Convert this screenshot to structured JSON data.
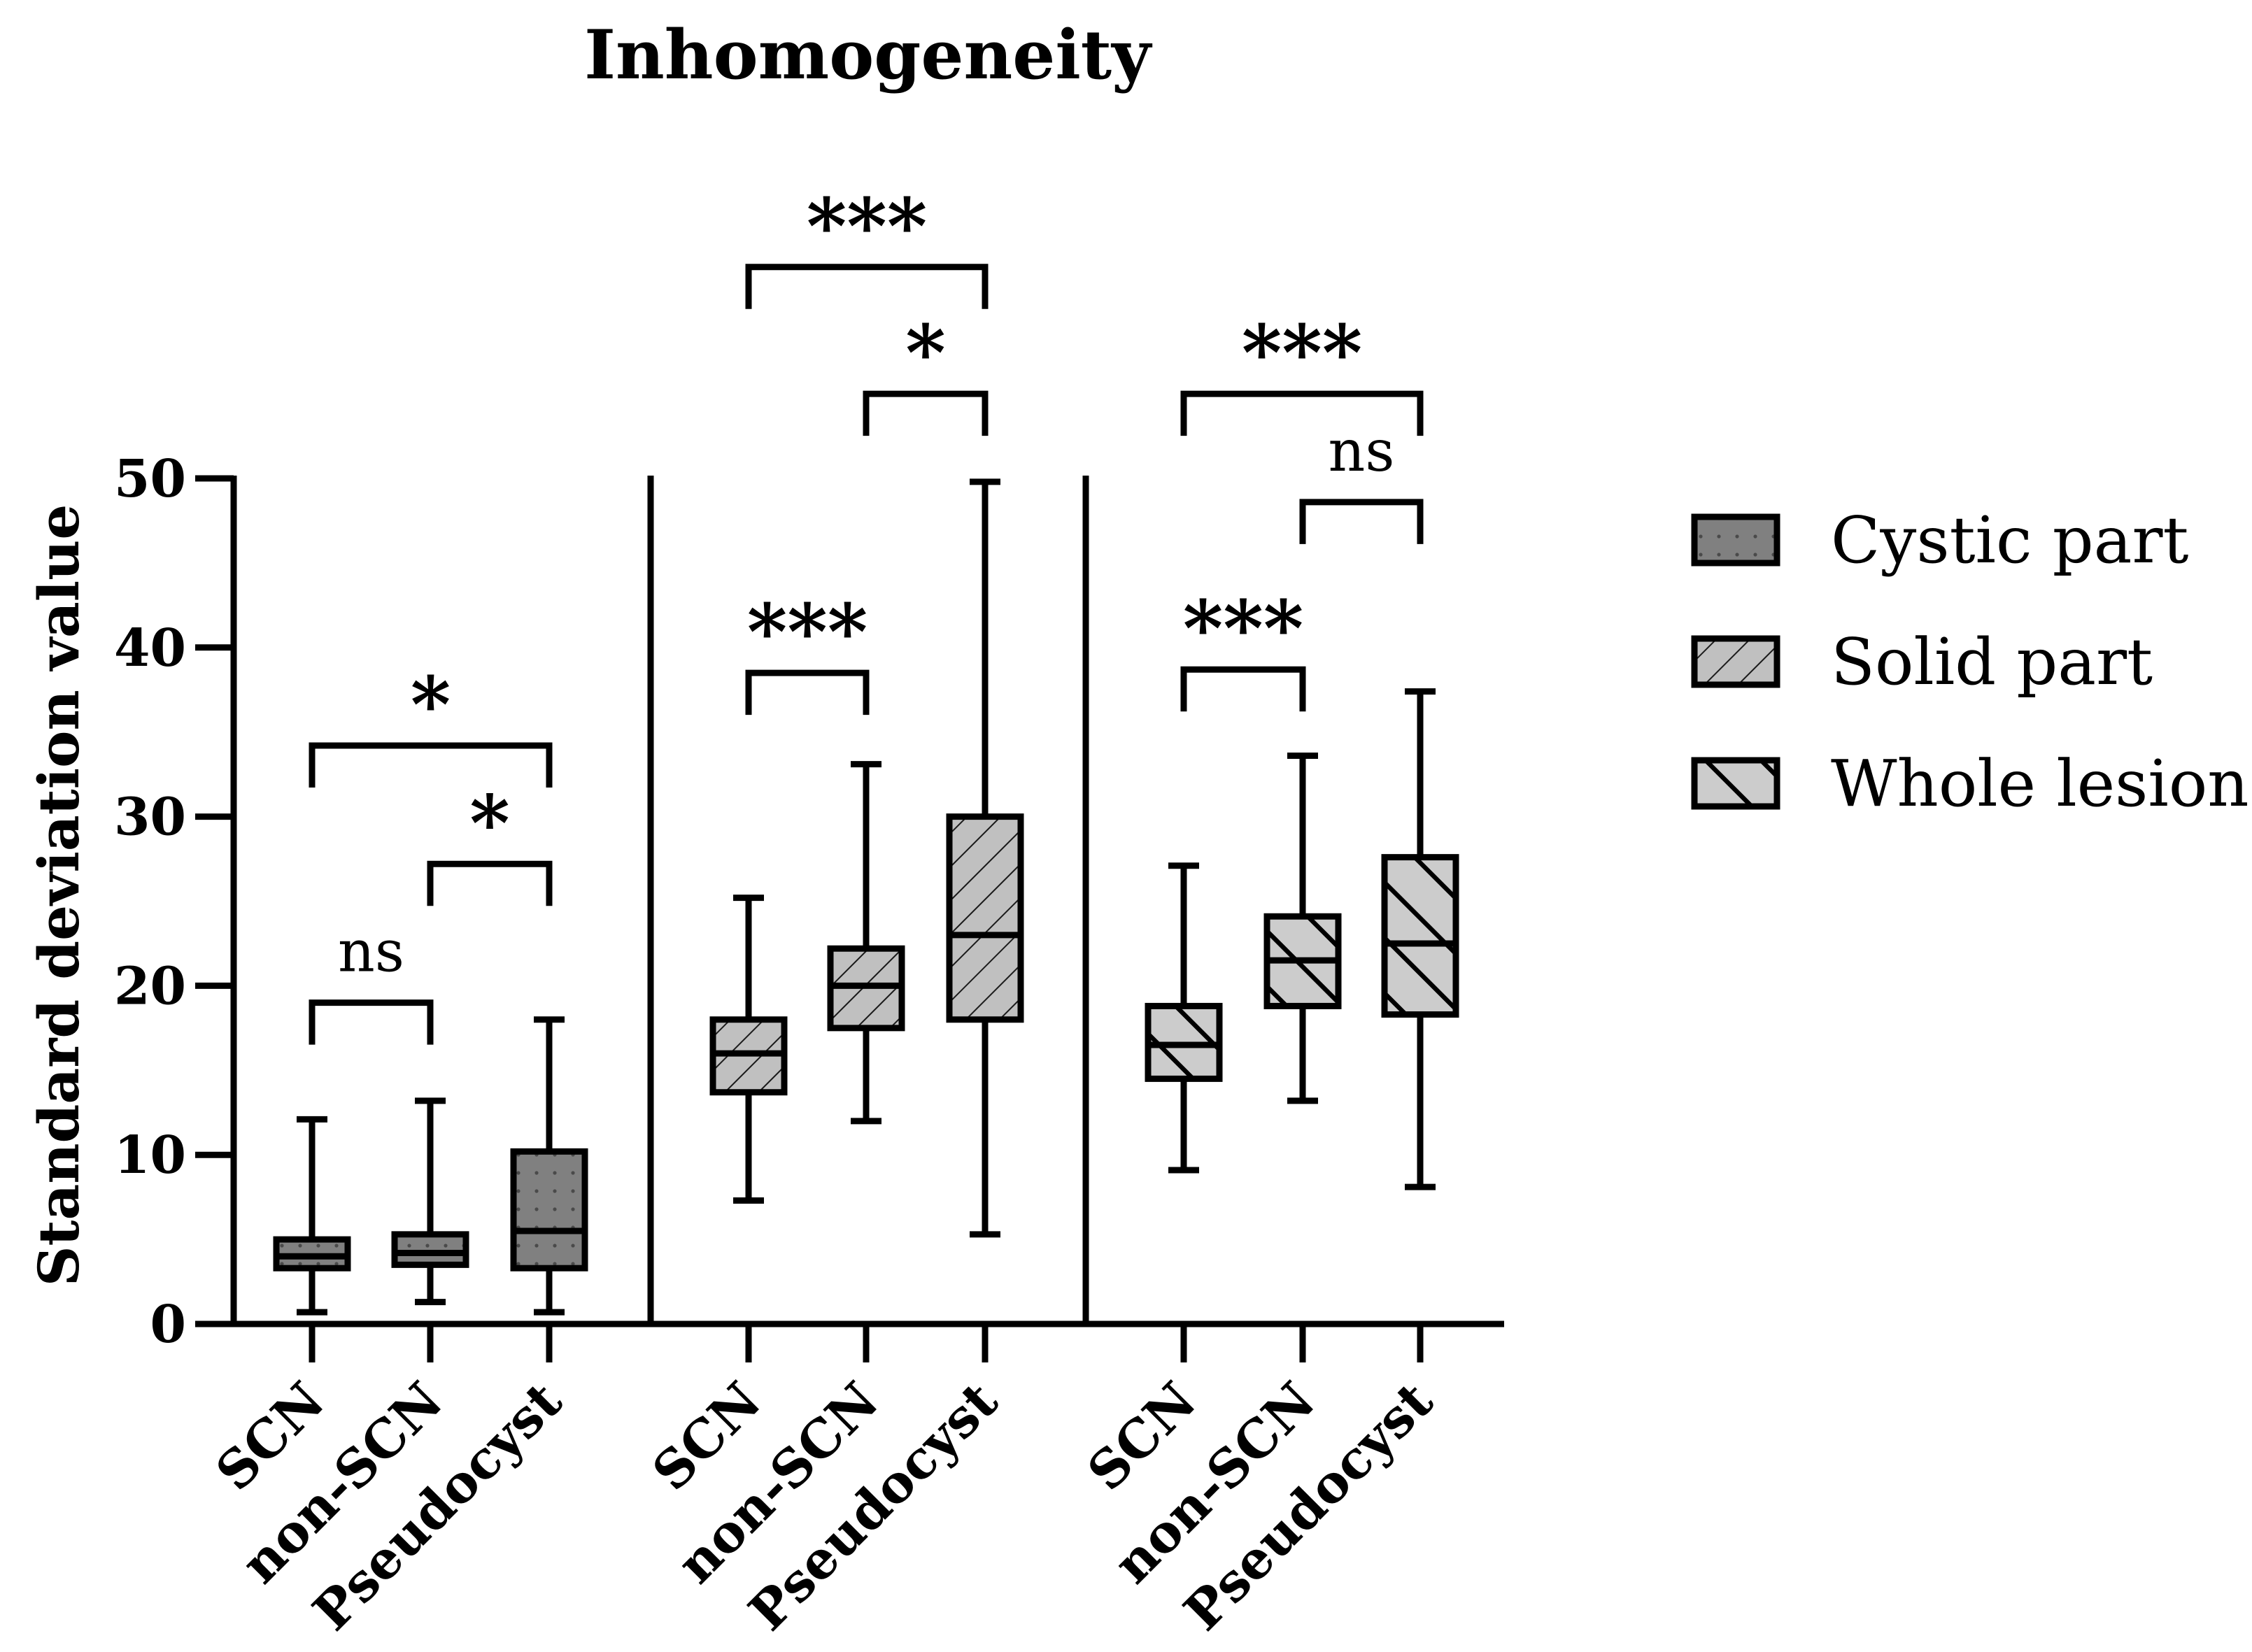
{
  "chart_data": {
    "type": "box",
    "title": "Inhomogeneity",
    "xlabel": "",
    "ylabel": "Standard deviation value",
    "ylim": [
      0,
      50
    ],
    "yticks": [
      "0",
      "10",
      "20",
      "30",
      "40",
      "50"
    ],
    "categories": [
      "SCN",
      "non-SCN",
      "Pseudocyst"
    ],
    "legend_position": "right",
    "series": [
      {
        "name": "Cystic part",
        "color": "#808080",
        "pattern": "dots",
        "boxes": [
          {
            "category": "SCN",
            "min": 0.7,
            "q1": 3.3,
            "median": 4.0,
            "q3": 5.0,
            "max": 12.1
          },
          {
            "category": "non-SCN",
            "min": 1.3,
            "q1": 3.5,
            "median": 4.2,
            "q3": 5.3,
            "max": 13.2
          },
          {
            "category": "Pseudocyst",
            "min": 0.7,
            "q1": 3.3,
            "median": 5.5,
            "q3": 10.2,
            "max": 18.0
          }
        ],
        "significance": [
          {
            "from": "SCN",
            "to": "non-SCN",
            "label": "ns",
            "bracket_value": 19.0
          },
          {
            "from": "non-SCN",
            "to": "Pseudocyst",
            "label": "*",
            "bracket_value": 27.2
          },
          {
            "from": "SCN",
            "to": "Pseudocyst",
            "label": "*",
            "bracket_value": 34.2
          }
        ]
      },
      {
        "name": "Solid part",
        "color": "#bdbdbd",
        "pattern": "diagonal-narrow",
        "boxes": [
          {
            "category": "SCN",
            "min": 7.3,
            "q1": 13.7,
            "median": 16.0,
            "q3": 18.0,
            "max": 25.2
          },
          {
            "category": "non-SCN",
            "min": 12.0,
            "q1": 17.5,
            "median": 20.0,
            "q3": 22.2,
            "max": 33.1
          },
          {
            "category": "Pseudocyst",
            "min": 5.3,
            "q1": 18.0,
            "median": 23.0,
            "q3": 30.0,
            "max": 49.8
          }
        ],
        "significance": [
          {
            "from": "SCN",
            "to": "non-SCN",
            "label": "***",
            "bracket_value": 38.5
          },
          {
            "from": "non-SCN",
            "to": "Pseudocyst",
            "label": "*",
            "bracket_value": 55.0
          },
          {
            "from": "SCN",
            "to": "Pseudocyst",
            "label": "***",
            "bracket_value": 62.5
          }
        ]
      },
      {
        "name": "Whole lesion",
        "color": "#c8c8c8",
        "pattern": "diagonal-wide",
        "boxes": [
          {
            "category": "SCN",
            "min": 9.1,
            "q1": 14.5,
            "median": 16.5,
            "q3": 18.8,
            "max": 27.1
          },
          {
            "category": "non-SCN",
            "min": 13.2,
            "q1": 18.8,
            "median": 21.5,
            "q3": 24.1,
            "max": 33.6
          },
          {
            "category": "Pseudocyst",
            "min": 8.1,
            "q1": 18.3,
            "median": 22.5,
            "q3": 27.6,
            "max": 37.4
          }
        ],
        "significance": [
          {
            "from": "SCN",
            "to": "non-SCN",
            "label": "***",
            "bracket_value": 38.7
          },
          {
            "from": "non-SCN",
            "to": "Pseudocyst",
            "label": "ns",
            "bracket_value": 48.6
          },
          {
            "from": "SCN",
            "to": "Pseudocyst",
            "label": "***",
            "bracket_value": 55.0
          }
        ]
      }
    ]
  }
}
